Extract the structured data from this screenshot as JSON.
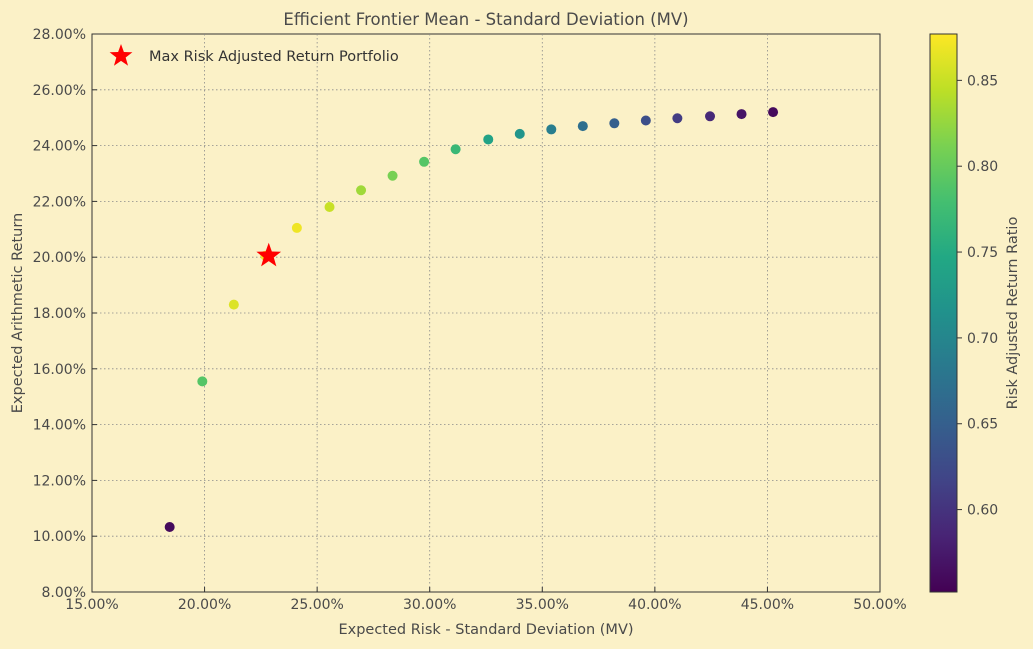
{
  "chart_data": {
    "type": "scatter",
    "title": "Efficient Frontier Mean - Standard Deviation (MV)",
    "xlabel": "Expected Risk - Standard Deviation (MV)",
    "ylabel": "Expected Arithmetic Return",
    "xlim": [
      15,
      50
    ],
    "ylim": [
      8,
      28
    ],
    "xticks": [
      15,
      20,
      25,
      30,
      35,
      40,
      45,
      50
    ],
    "xtick_labels": [
      "15.00%",
      "20.00%",
      "25.00%",
      "30.00%",
      "35.00%",
      "40.00%",
      "45.00%",
      "50.00%"
    ],
    "yticks": [
      8,
      10,
      12,
      14,
      16,
      18,
      20,
      22,
      24,
      26,
      28
    ],
    "ytick_labels": [
      "8.00%",
      "10.00%",
      "12.00%",
      "14.00%",
      "16.00%",
      "18.00%",
      "20.00%",
      "22.00%",
      "24.00%",
      "26.00%",
      "28.00%"
    ],
    "grid": true,
    "grid_style": "dotted",
    "points": [
      {
        "x": 18.45,
        "y": 10.33,
        "c": 0.56
      },
      {
        "x": 19.9,
        "y": 15.55,
        "c": 0.79
      },
      {
        "x": 21.3,
        "y": 18.3,
        "c": 0.86
      },
      {
        "x": 22.7,
        "y": 20.05,
        "c": 0.87
      },
      {
        "x": 24.1,
        "y": 21.05,
        "c": 0.87
      },
      {
        "x": 25.55,
        "y": 21.8,
        "c": 0.85
      },
      {
        "x": 26.95,
        "y": 22.4,
        "c": 0.83
      },
      {
        "x": 28.35,
        "y": 22.92,
        "c": 0.81
      },
      {
        "x": 29.75,
        "y": 23.42,
        "c": 0.79
      },
      {
        "x": 31.15,
        "y": 23.87,
        "c": 0.77
      },
      {
        "x": 32.6,
        "y": 24.22,
        "c": 0.74
      },
      {
        "x": 34.0,
        "y": 24.42,
        "c": 0.72
      },
      {
        "x": 35.4,
        "y": 24.58,
        "c": 0.69
      },
      {
        "x": 36.8,
        "y": 24.7,
        "c": 0.67
      },
      {
        "x": 38.2,
        "y": 24.8,
        "c": 0.65
      },
      {
        "x": 39.6,
        "y": 24.9,
        "c": 0.63
      },
      {
        "x": 41.0,
        "y": 24.98,
        "c": 0.61
      },
      {
        "x": 42.45,
        "y": 25.05,
        "c": 0.59
      },
      {
        "x": 43.85,
        "y": 25.13,
        "c": 0.57
      },
      {
        "x": 45.25,
        "y": 25.2,
        "c": 0.56
      }
    ],
    "highlight": {
      "label": "Max Risk Adjusted Return Portfolio",
      "x": 22.85,
      "y": 20.05,
      "marker": "star",
      "color": "#ff0000"
    },
    "legend": {
      "position": "top-left",
      "entries": [
        "Max Risk Adjusted Return Portfolio"
      ]
    },
    "colorbar": {
      "label": "Risk Adjusted Return Ratio",
      "colormap": "viridis",
      "range": [
        0.552,
        0.877
      ],
      "ticks": [
        0.6,
        0.65,
        0.7,
        0.75,
        0.8,
        0.85
      ],
      "tick_labels": [
        "0.60",
        "0.65",
        "0.70",
        "0.75",
        "0.80",
        "0.85"
      ]
    },
    "background_color": "#fbf1c7",
    "plot_background_color": "#fbf1c7"
  }
}
